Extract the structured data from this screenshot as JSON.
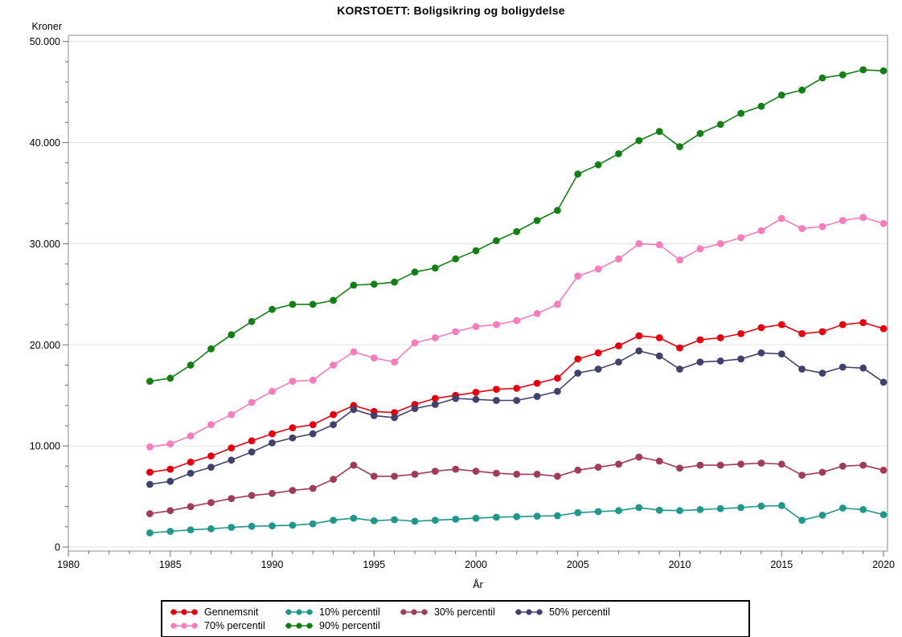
{
  "title": "KORSTOETT: Boligsikring og boligydelse",
  "chart_data": {
    "type": "line",
    "title": "KORSTOETT: Boligsikring og boligydelse",
    "ylabel": "Kroner",
    "xlabel": "År",
    "grid": "horizontal",
    "legend_position": "bottom",
    "xlim": [
      1980,
      2021
    ],
    "ylim": [
      0,
      50000
    ],
    "x_ticks": [
      1980,
      1985,
      1990,
      1995,
      2000,
      2005,
      2010,
      2015,
      2020
    ],
    "y_ticks": [
      0,
      10000,
      20000,
      30000,
      40000,
      50000
    ],
    "y_tick_labels": [
      "0",
      "10.000",
      "20.000",
      "30.000",
      "40.000",
      "50.000"
    ],
    "x": [
      1984,
      1985,
      1986,
      1987,
      1988,
      1989,
      1990,
      1991,
      1992,
      1993,
      1994,
      1995,
      1996,
      1997,
      1998,
      1999,
      2000,
      2001,
      2002,
      2003,
      2004,
      2005,
      2006,
      2007,
      2008,
      2009,
      2010,
      2011,
      2012,
      2013,
      2014,
      2015,
      2016,
      2017,
      2018,
      2019,
      2020
    ],
    "series": [
      {
        "name": "Gennemsnit",
        "color": "#E8000D",
        "values": [
          7400,
          7700,
          8400,
          9000,
          9800,
          10500,
          11200,
          11800,
          12100,
          13100,
          14000,
          13400,
          13300,
          14100,
          14700,
          15000,
          15300,
          15600,
          15700,
          16200,
          16700,
          18600,
          19200,
          19900,
          20900,
          20700,
          19700,
          20500,
          20700,
          21100,
          21700,
          22000,
          21100,
          21300,
          22000,
          22200,
          21600
        ]
      },
      {
        "name": "10% percentil",
        "color": "#1F988C",
        "values": [
          1400,
          1550,
          1700,
          1800,
          1950,
          2050,
          2100,
          2150,
          2300,
          2650,
          2850,
          2600,
          2700,
          2550,
          2650,
          2750,
          2850,
          2950,
          3000,
          3050,
          3100,
          3400,
          3500,
          3600,
          3900,
          3650,
          3600,
          3700,
          3800,
          3900,
          4050,
          4100,
          2650,
          3150,
          3850,
          3700,
          3200
        ]
      },
      {
        "name": "30% percentil",
        "color": "#A23B55",
        "values": [
          3300,
          3600,
          4000,
          4400,
          4800,
          5100,
          5300,
          5600,
          5800,
          6700,
          8100,
          7000,
          7000,
          7200,
          7500,
          7700,
          7500,
          7300,
          7200,
          7200,
          7000,
          7600,
          7900,
          8200,
          8900,
          8500,
          7800,
          8100,
          8100,
          8200,
          8300,
          8200,
          7100,
          7400,
          8000,
          8100,
          7600
        ]
      },
      {
        "name": "50% percentil",
        "color": "#41416E",
        "values": [
          6200,
          6500,
          7300,
          7900,
          8600,
          9400,
          10300,
          10800,
          11200,
          12100,
          13600,
          13000,
          12800,
          13700,
          14100,
          14700,
          14600,
          14500,
          14500,
          14900,
          15400,
          17200,
          17600,
          18300,
          19400,
          18900,
          17600,
          18300,
          18400,
          18600,
          19200,
          19100,
          17600,
          17200,
          17800,
          17700,
          16300
        ]
      },
      {
        "name": "70% percentil",
        "color": "#F87BBB",
        "values": [
          9900,
          10200,
          11000,
          12100,
          13100,
          14300,
          15400,
          16400,
          16500,
          18000,
          19300,
          18700,
          18300,
          20200,
          20700,
          21300,
          21800,
          22000,
          22400,
          23100,
          24000,
          26800,
          27500,
          28500,
          30000,
          29900,
          28400,
          29500,
          30000,
          30600,
          31300,
          32500,
          31500,
          31700,
          32300,
          32600,
          32000
        ]
      },
      {
        "name": "90% percentil",
        "color": "#128012",
        "values": [
          16400,
          16700,
          18000,
          19600,
          21000,
          22300,
          23500,
          24000,
          24000,
          24400,
          25900,
          26000,
          26200,
          27200,
          27600,
          28500,
          29300,
          30300,
          31200,
          32300,
          33300,
          36900,
          37800,
          38900,
          40200,
          41100,
          39600,
          40900,
          41800,
          42900,
          43600,
          44700,
          45200,
          46400,
          46700,
          47200,
          47100
        ]
      }
    ]
  }
}
